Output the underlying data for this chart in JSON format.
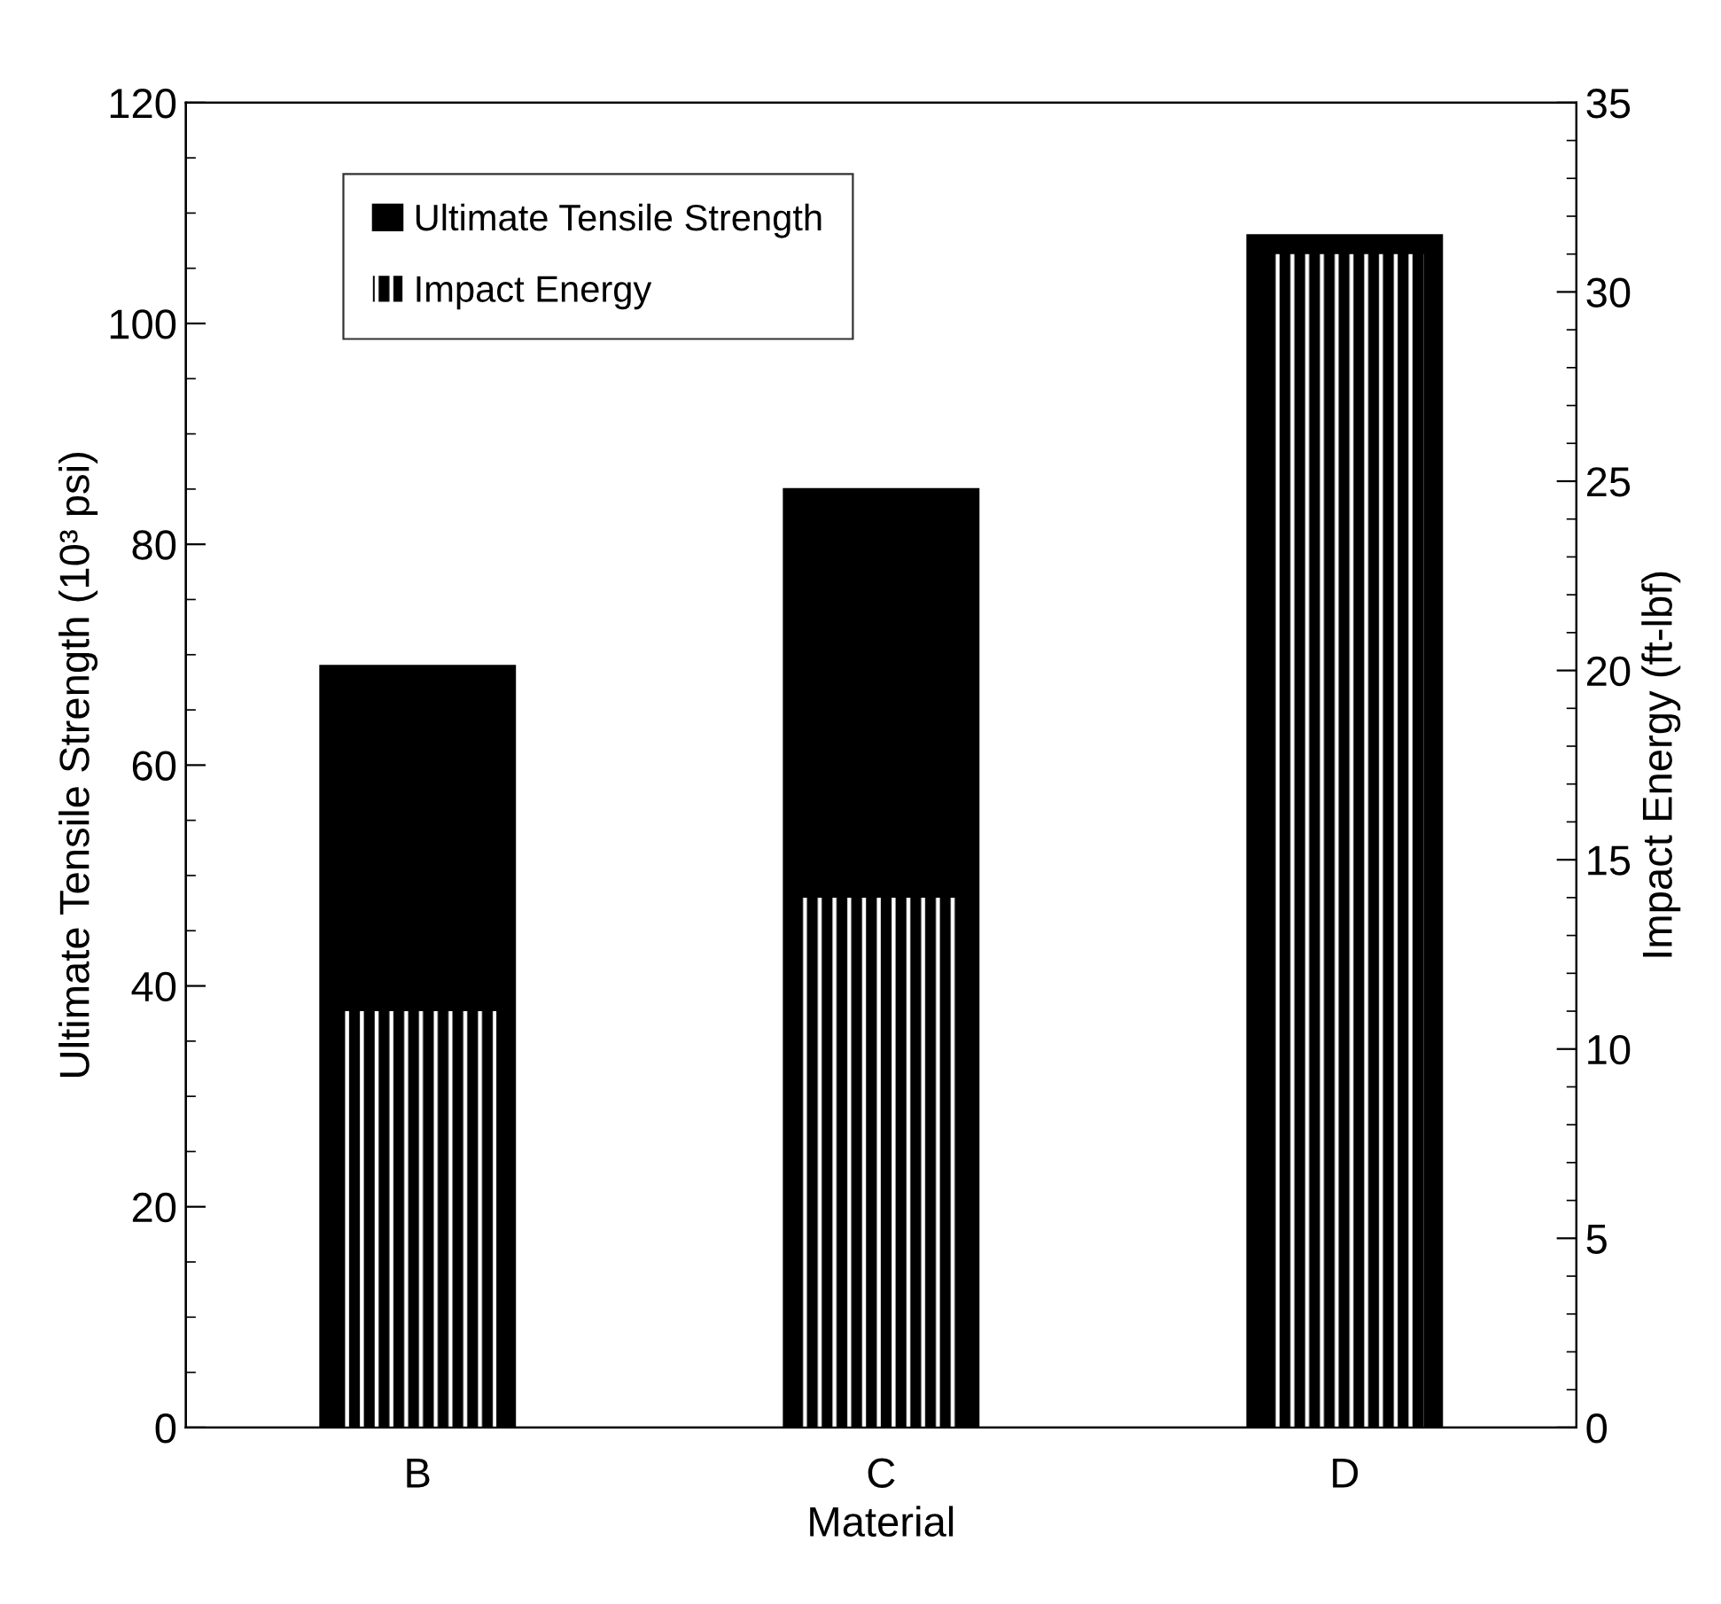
{
  "chart_data": {
    "type": "bar",
    "xlabel": "Material",
    "ylabel": "Ultimate Tensile Strength (10³ psi)",
    "y2label": "Impact Energy (ft-lbf)",
    "categories": [
      "B",
      "C",
      "D"
    ],
    "series": [
      {
        "name": "Ultimate Tensile Strength",
        "color": "#000000",
        "values": [
          69,
          85,
          108
        ]
      },
      {
        "name": "Impact Energy",
        "color": "#000000",
        "axis": "y2",
        "values": [
          11,
          14,
          31
        ]
      }
    ],
    "ylim": [
      0,
      120
    ],
    "yticks": [
      0,
      20,
      40,
      60,
      80,
      100,
      120
    ],
    "y2lim": [
      0,
      35
    ],
    "y2ticks": [
      0,
      5,
      10,
      15,
      20,
      25,
      30,
      35
    ],
    "legend": "top left",
    "grid": false
  }
}
